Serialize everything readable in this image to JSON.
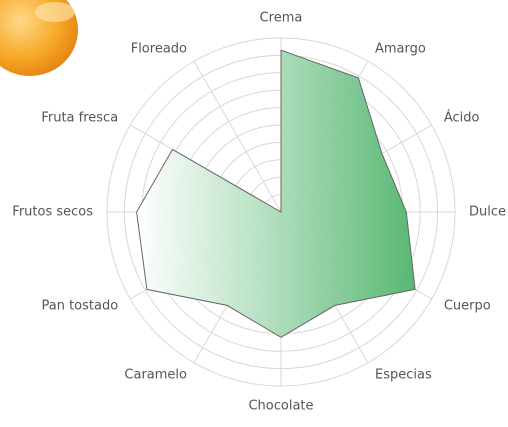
{
  "chart_data": {
    "type": "radar",
    "categories": [
      "Crema",
      "Amargo",
      "Ácido",
      "Dulce",
      "Cuerpo",
      "Especias",
      "Chocolate",
      "Caramelo",
      "Pan tostado",
      "Frutos secos",
      "Fruta fresca",
      "Floreado"
    ],
    "values": [
      9.3,
      8.9,
      6.7,
      7.2,
      8.9,
      6.2,
      7.2,
      6.2,
      8.9,
      8.3,
      7.2,
      0
    ],
    "rlim": [
      0,
      10
    ],
    "rticks": [
      1,
      2,
      3,
      4,
      5,
      6,
      7,
      8,
      9,
      10
    ],
    "color": "#5cb87a"
  }
}
